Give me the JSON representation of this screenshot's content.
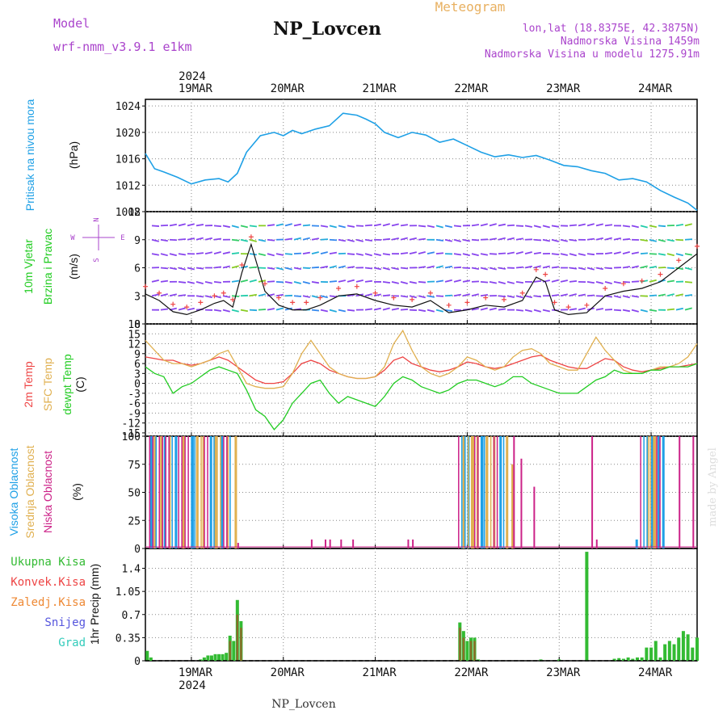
{
  "header": {
    "model_label": "Model",
    "model_value": "wrf-nmm_v3.9.1 e1km",
    "station": "NP_Lovcen",
    "product": "Meteogram",
    "lonlat": "lon,lat (18.8375E, 42.3875N)",
    "elevation": "Nadmorska Visina 1459m",
    "model_elevation": "Nadmorska Visina u modelu 1275.91m",
    "footer_station": "NP_Lovcen",
    "credit": "made by Angel"
  },
  "time_axis": {
    "days": [
      "19MAR",
      "20MAR",
      "21MAR",
      "22MAR",
      "23MAR",
      "24MAR"
    ],
    "year": "2024",
    "range_days": [
      -0.5,
      5.5
    ]
  },
  "colors": {
    "pressure": "#1ea0e6",
    "temp2m": "#ee4444",
    "sfc": "#e0b050",
    "dew": "#22cc22",
    "precip": "#33bb33",
    "conv": "#ee4444",
    "frz": "#ee8833",
    "snow": "#5555dd",
    "graupel": "#33ccbb",
    "high_cloud": "#1ea0e6",
    "mid_cloud": "#e0b050",
    "low_cloud": "#cc2288",
    "barb": "#8844ee",
    "label_purple": "#aa44cc",
    "title_orange": "#e8b060"
  },
  "chart_data": [
    {
      "type": "line",
      "panel": "pressure",
      "ylabel": "Pritisak na nivou mora",
      "unit": "(hPa)",
      "ylim": [
        1008,
        1025
      ],
      "yticks": [
        "1008",
        "1012",
        "1016",
        "1020",
        "1024"
      ],
      "grid": true,
      "x_days": [
        -0.5,
        -0.4,
        -0.3,
        -0.15,
        0,
        0.15,
        0.3,
        0.4,
        0.5,
        0.6,
        0.75,
        0.9,
        1.0,
        1.1,
        1.2,
        1.35,
        1.5,
        1.65,
        1.8,
        1.9,
        2.0,
        2.1,
        2.25,
        2.4,
        2.55,
        2.7,
        2.85,
        3.0,
        3.15,
        3.3,
        3.45,
        3.6,
        3.75,
        3.9,
        4.05,
        4.2,
        4.35,
        4.5,
        4.65,
        4.8,
        4.95,
        5.1,
        5.25,
        5.4,
        5.5
      ],
      "values": [
        1016.8,
        1014.5,
        1014.0,
        1013.2,
        1012.2,
        1012.8,
        1013.0,
        1012.5,
        1013.8,
        1017.0,
        1019.5,
        1020.0,
        1019.5,
        1020.3,
        1019.8,
        1020.5,
        1021.0,
        1022.9,
        1022.6,
        1022.0,
        1021.3,
        1020.0,
        1019.2,
        1020.0,
        1019.6,
        1018.5,
        1019.0,
        1018.0,
        1017.0,
        1016.3,
        1016.6,
        1016.2,
        1016.5,
        1015.8,
        1015.0,
        1014.8,
        1014.2,
        1013.8,
        1012.8,
        1013.0,
        1012.5,
        1011.2,
        1010.2,
        1009.3,
        1008.2
      ]
    },
    {
      "type": "line",
      "panel": "wind",
      "ylabel": "10m Vjetar",
      "ylabel2": "Brzina i Pravac",
      "unit": "(m/s)",
      "ylim": [
        0,
        12
      ],
      "yticks": [
        "0",
        "3",
        "6",
        "9",
        "12"
      ],
      "compass": [
        "N",
        "E",
        "S",
        "W"
      ],
      "x_days": [
        -0.5,
        -0.35,
        -0.2,
        -0.05,
        0.1,
        0.25,
        0.35,
        0.45,
        0.55,
        0.65,
        0.8,
        0.95,
        1.1,
        1.25,
        1.4,
        1.6,
        1.8,
        2.0,
        2.2,
        2.4,
        2.6,
        2.8,
        3.0,
        3.2,
        3.4,
        3.6,
        3.75,
        3.85,
        3.95,
        4.1,
        4.3,
        4.5,
        4.7,
        4.9,
        5.1,
        5.3,
        5.5
      ],
      "values": [
        3.2,
        2.5,
        1.3,
        1.0,
        1.5,
        2.2,
        2.5,
        1.8,
        5.5,
        8.5,
        3.5,
        2.0,
        1.5,
        1.5,
        2.0,
        3.0,
        3.2,
        2.5,
        2.0,
        1.8,
        2.5,
        1.2,
        1.5,
        2.0,
        1.8,
        2.5,
        5.0,
        4.5,
        1.5,
        1.0,
        1.2,
        3.0,
        3.5,
        3.8,
        4.5,
        6.0,
        7.5
      ]
    },
    {
      "type": "line",
      "panel": "temperature",
      "ylabel": "2m Temp",
      "ylabel2": "SFC Temp",
      "ylabel3": "dewpt Temp",
      "unit": "(C)",
      "ylim": [
        -16,
        18
      ],
      "yticks": [
        "-15",
        "-12",
        "-9",
        "-6",
        "-3",
        "0",
        "3",
        "6",
        "9",
        "12",
        "15",
        "18"
      ],
      "x_days": [
        -0.5,
        -0.4,
        -0.3,
        -0.2,
        -0.1,
        0,
        0.1,
        0.2,
        0.3,
        0.4,
        0.5,
        0.6,
        0.7,
        0.8,
        0.9,
        1.0,
        1.1,
        1.2,
        1.3,
        1.4,
        1.5,
        1.6,
        1.7,
        1.8,
        1.9,
        2.0,
        2.1,
        2.2,
        2.3,
        2.4,
        2.5,
        2.6,
        2.7,
        2.8,
        2.9,
        3.0,
        3.1,
        3.2,
        3.3,
        3.4,
        3.5,
        3.6,
        3.7,
        3.8,
        3.9,
        4.0,
        4.1,
        4.2,
        4.3,
        4.4,
        4.5,
        4.6,
        4.7,
        4.8,
        4.9,
        5.0,
        5.1,
        5.2,
        5.3,
        5.4,
        5.5
      ],
      "series": [
        {
          "name": "2m Temp",
          "values": [
            8,
            7.5,
            7,
            7,
            6,
            5.5,
            6,
            7,
            8,
            7,
            5,
            3,
            1,
            0,
            0,
            0.5,
            3,
            6,
            7,
            6,
            4,
            3,
            2,
            1.5,
            1.5,
            2,
            4,
            7,
            8,
            6,
            5,
            4,
            3.5,
            4,
            5,
            6.5,
            6,
            5,
            4.5,
            5,
            6,
            7,
            8,
            8.5,
            7,
            6,
            5,
            4.5,
            4.5,
            6,
            7.5,
            7,
            5,
            4,
            3.5,
            4,
            4.5,
            5,
            5,
            5.5,
            6
          ]
        },
        {
          "name": "SFC Temp",
          "values": [
            13,
            10,
            7,
            6,
            6,
            5,
            6,
            7,
            9,
            10,
            5,
            0,
            -1,
            -1.5,
            -1.5,
            -1,
            3,
            9,
            13,
            9,
            5,
            3,
            2,
            1.5,
            1.5,
            2,
            5,
            12,
            16,
            10,
            5,
            3,
            2,
            3,
            5,
            8,
            7,
            5,
            4,
            5,
            8,
            10,
            10.5,
            9,
            6,
            5,
            4,
            4,
            9,
            14,
            10,
            7,
            4,
            3,
            3,
            4,
            5,
            5,
            6,
            8,
            12
          ]
        },
        {
          "name": "dewpt Temp",
          "values": [
            5,
            3,
            2,
            -3,
            -1,
            0,
            2,
            4,
            5,
            4,
            3,
            -2,
            -8,
            -10,
            -14,
            -11,
            -6,
            -3,
            0,
            1,
            -3,
            -6,
            -4,
            -5,
            -6,
            -7,
            -4,
            0,
            2,
            1,
            -1,
            -2,
            -3,
            -2,
            0,
            1,
            1,
            0,
            -1,
            0,
            2,
            2,
            0,
            -1,
            -2,
            -3,
            -3,
            -3,
            -1,
            1,
            2,
            4,
            3,
            3,
            3,
            4,
            4,
            5,
            5,
            5,
            6
          ]
        }
      ]
    },
    {
      "type": "bar",
      "panel": "cloud",
      "ylabel": "Visoka Oblacnost",
      "ylabel2": "Srednja Oblacnost",
      "ylabel3": "Niska Oblacnost",
      "unit": "(%)",
      "ylim": [
        0,
        100
      ],
      "yticks": [
        "0",
        "25",
        "50",
        "75",
        "100"
      ],
      "series": [
        {
          "name": "Visoka Oblacnost",
          "x_days": [
            -0.45,
            -0.3,
            -0.18,
            0.0,
            0.2,
            0.32,
            3.0,
            3.15,
            3.35,
            5.0,
            5.07,
            5.12,
            4.83
          ],
          "values": [
            100,
            100,
            100,
            100,
            100,
            100,
            100,
            100,
            100,
            100,
            100,
            100,
            8
          ]
        },
        {
          "name": "Srednja Oblacnost",
          "x_days": [
            -0.41,
            -0.34,
            -0.25,
            -0.1,
            0.05,
            0.12,
            0.25,
            0.38,
            0.47,
            2.95,
            3.05,
            3.1,
            3.2,
            3.28,
            3.42,
            3.48,
            4.95,
            5.03
          ],
          "values": [
            100,
            100,
            100,
            100,
            100,
            100,
            100,
            100,
            100,
            100,
            100,
            100,
            100,
            100,
            100,
            75,
            100,
            100
          ]
        },
        {
          "name": "Niska Oblacnost",
          "x_days": [
            0.5,
            1.3,
            1.45,
            1.5,
            1.62,
            1.75,
            2.35,
            2.4,
            3.5,
            3.58,
            3.72,
            4.35,
            4.4,
            5.3,
            5.45
          ],
          "values": [
            5,
            8,
            8,
            8,
            8,
            8,
            8,
            8,
            100,
            80,
            55,
            100,
            8,
            100,
            100
          ]
        }
      ]
    },
    {
      "type": "bar",
      "panel": "precip",
      "ylabel": "1hr Precip (mm)",
      "ylim": [
        0,
        1.7
      ],
      "yticks": [
        "0",
        "0.35",
        "0.7",
        "1.05",
        "1.4"
      ],
      "legend": [
        "Ukupna Kisa",
        "Konvek.Kisa",
        "Zaledj.Kisa",
        "Snijeg",
        "Grad"
      ],
      "series": [
        {
          "name": "Ukupna Kisa",
          "x_days": [
            -0.48,
            -0.44,
            0.1,
            0.14,
            0.18,
            0.22,
            0.26,
            0.3,
            0.34,
            0.38,
            0.42,
            0.46,
            0.5,
            0.54,
            2.92,
            2.96,
            3.0,
            3.04,
            3.08,
            3.12,
            3.8,
            4.0,
            4.3,
            4.6,
            4.65,
            4.7,
            4.75,
            4.8,
            4.85,
            4.9,
            4.95,
            5.0,
            5.05,
            5.1,
            5.15,
            5.2,
            5.25,
            5.3,
            5.35,
            5.4,
            5.45,
            5.5
          ],
          "values": [
            0.15,
            0.05,
            0.02,
            0.05,
            0.08,
            0.08,
            0.1,
            0.1,
            0.1,
            0.12,
            0.38,
            0.3,
            0.92,
            0.6,
            0.58,
            0.45,
            0.3,
            0.35,
            0.35,
            0.02,
            0.02,
            0.02,
            1.65,
            0.03,
            0.04,
            0.03,
            0.05,
            0.03,
            0.05,
            0.05,
            0.2,
            0.2,
            0.3,
            0.05,
            0.25,
            0.3,
            0.25,
            0.35,
            0.45,
            0.4,
            0.2,
            0.35
          ]
        },
        {
          "name": "Konvek.Kisa",
          "x_days": [
            0.42,
            0.5,
            0.54,
            2.92,
            2.96,
            3.04,
            3.08
          ],
          "values": [
            0.3,
            0.7,
            0.5,
            0.5,
            0.35,
            0.3,
            0.3
          ]
        }
      ]
    }
  ]
}
